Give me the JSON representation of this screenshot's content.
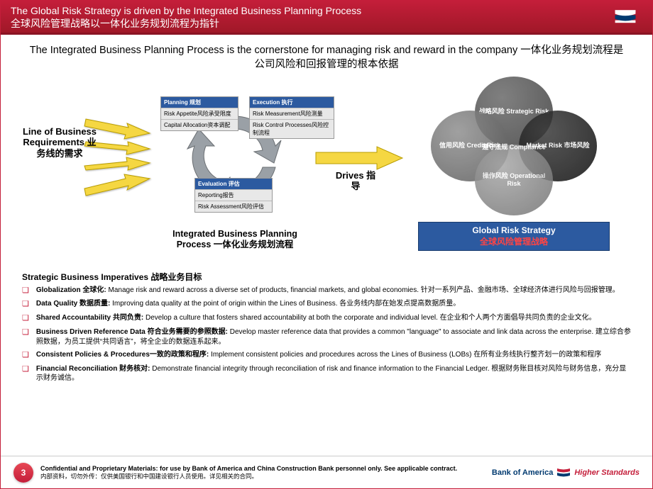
{
  "colors": {
    "brand_red": "#c41e3a",
    "box_header_blue": "#2c5aa0",
    "arrow_fill": "#f5d742",
    "arrow_stroke": "#b89c00",
    "cycle_gray": "#9aa0a6",
    "venn_strategic": "#4a4a4a",
    "venn_credit": "#707070",
    "venn_market": "#1a1a1a",
    "venn_operational": "#8a8a8a"
  },
  "header": {
    "title_en": "The Global Risk Strategy is driven by the Integrated Business Planning Process",
    "title_cn": "全球风险管理战略以一体化业务规划流程为指针"
  },
  "subtitle": "The Integrated Business Planning Process is the cornerstone for managing risk and reward in the company 一体化业务规划流程是公司风险和回报管理的根本依据",
  "lob_label": "Line of Business Requirements 业务线的需求",
  "boxes": {
    "planning": {
      "header": "Planning 规划",
      "rows": [
        "Risk Appetite风险承受限度",
        "Capital Allocation资本调配"
      ]
    },
    "execution": {
      "header": "Execution 执行",
      "rows": [
        "Risk Measurement风险测量",
        "Risk Control Processes风险控制流程"
      ]
    },
    "evaluation": {
      "header": "Evaluation 评估",
      "rows": [
        "Reporting报告",
        "Risk Assessment风险评估"
      ]
    }
  },
  "ibp_label": "Integrated Business Planning Process 一体化业务规划流程",
  "drives_label": "Drives 指导",
  "venn": {
    "center": "遵守法规 Compliance",
    "strategic": "战略风险 Strategic Risk",
    "credit": "信用风险 Credit Risk",
    "market": "Market Risk 市场风险",
    "operational": "操作风险 Operational Risk"
  },
  "grs_box": {
    "en": "Global Risk Strategy",
    "cn": "全球风险管理战略"
  },
  "imperatives": {
    "title": "Strategic Business Imperatives 战略业务目标",
    "items": [
      {
        "bold": "Globalization 全球化:",
        "text": " Manage risk and reward across a diverse set of products, financial markets, and global economies. 针对一系列产品、金融市场、全球经济体进行风险与回报管理。"
      },
      {
        "bold": "Data Quality 数据质量:",
        "text": " Improving data quality at the point of origin within the Lines of Business. 各业务线内部在始发点提高数据质量。"
      },
      {
        "bold": "Shared Accountability 共同负责:",
        "text": " Develop a culture that fosters shared accountability at both the corporate and individual level. 在企业和个人两个方面倡导共同负责的企业文化。"
      },
      {
        "bold": "Business Driven Reference Data 符合业务需要的参照数据:",
        "text": " Develop master reference data that provides a common \"language\" to associate and link data across the enterprise. 建立综合参照数据，为员工提供“共同语言”，将全企业的数据连系起来。"
      },
      {
        "bold": "Consistent Policies & Procedures一致的政策和程序:",
        "text": " Implement consistent policies and procedures across the Lines of Business (LOBs) 在所有业务线执行整齐划一的政策和程序"
      },
      {
        "bold": "Financial Reconciliation 财务核对:",
        "text": " Demonstrate financial integrity through reconciliation of risk and finance information to the Financial Ledger. 根据财务账目核对风险与财务信息，充分显示财务诚信。"
      }
    ]
  },
  "footer": {
    "page": "3",
    "confidential_en": "Confidential and Proprietary Materials: for use by Bank of America and China Construction Bank personnel only. See applicable contract.",
    "confidential_cn": "内部资料，切勿外传：仅供美国银行和中国建设银行人员使用。详见相关的合同。",
    "logo_text": "Bank of America",
    "logo_hs": "Higher Standards"
  }
}
